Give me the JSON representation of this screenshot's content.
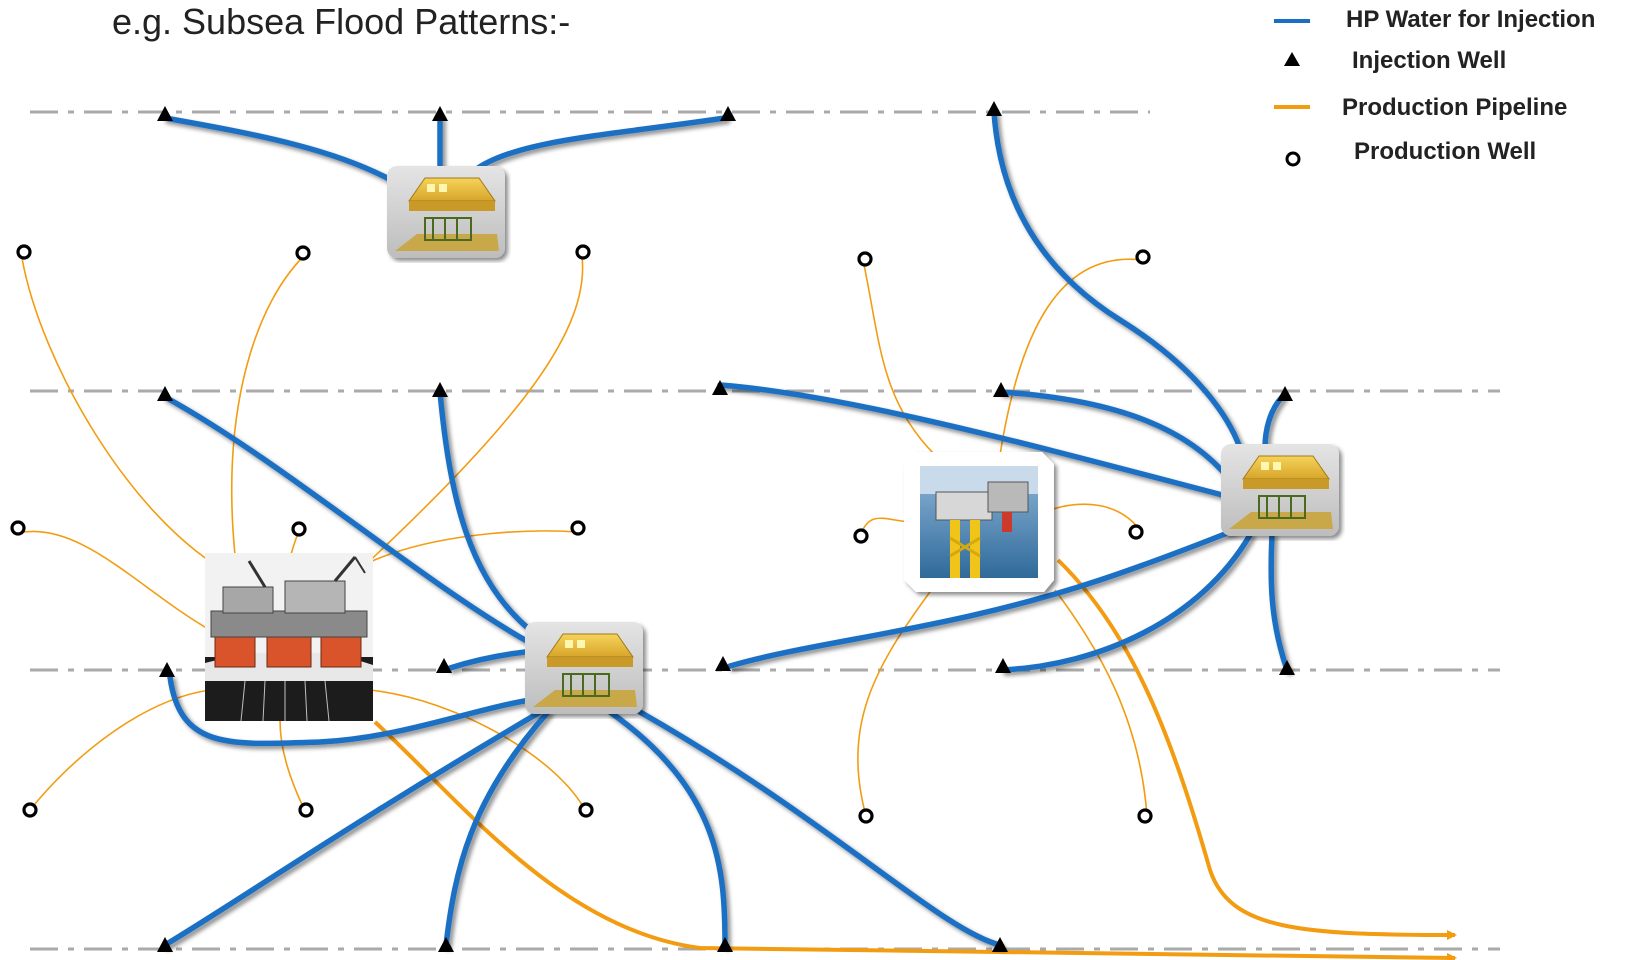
{
  "title": "e.g. Subsea Flood Patterns:-",
  "legend": {
    "hp_water": "HP Water for Injection",
    "injection_well": "Injection Well",
    "production_pipeline": "Production Pipeline",
    "production_well": "Production Well"
  },
  "colors": {
    "hp_water": "#1a6fc4",
    "production_pipeline": "#f39c12",
    "well_symbol": "#000000",
    "guide_line": "#aaaaaa"
  },
  "icons": [
    "subsea-manifold-icon",
    "floating-platform-icon",
    "fixed-platform-icon",
    "injection-well-icon",
    "production-well-icon"
  ]
}
